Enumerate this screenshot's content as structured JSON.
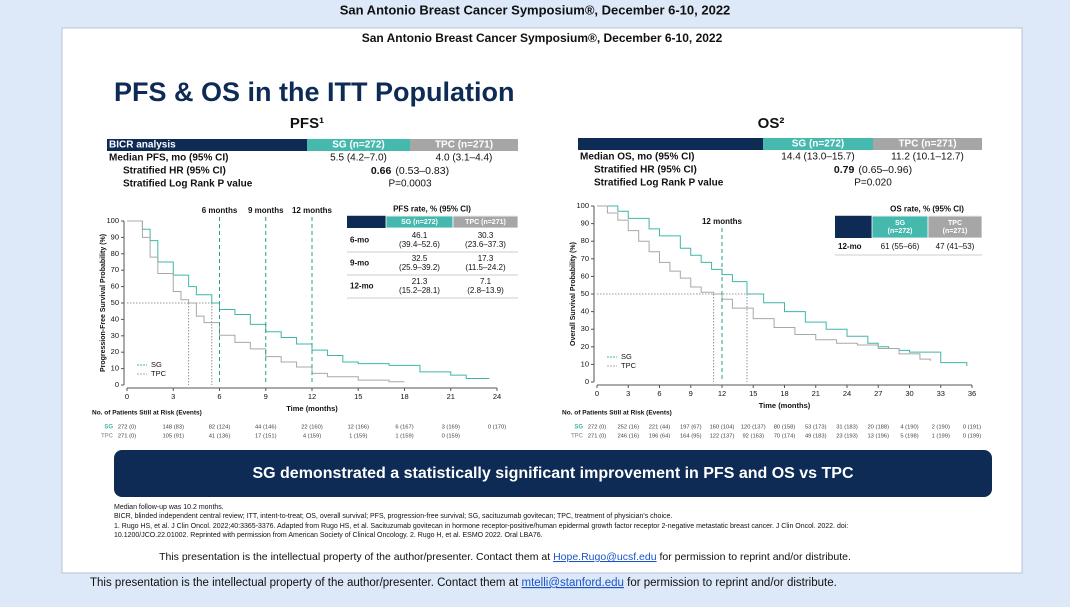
{
  "header": {
    "outer_title": "San Antonio Breast Cancer Symposium®, December 6-10, 2022",
    "slide_title": "San Antonio Breast Cancer Symposium®, December 6-10, 2022"
  },
  "slide_title": "PFS & OS in the ITT Population",
  "summaries": [
    {
      "header": [
        "BICR analysis",
        "SG (n=272)",
        "TPC (n=271)"
      ],
      "median": {
        "label": "Median PFS, mo (95% CI)",
        "values": [
          "5.5 (4.2–7.0)",
          "4.0 (3.1–4.4)"
        ]
      },
      "hr": {
        "label": "Stratified HR (95% CI)",
        "value": "0.66",
        "ci": "(0.53–0.83)"
      },
      "p": {
        "label": "Stratified Log Rank P value",
        "value": "P=0.0003"
      }
    },
    {
      "header": [
        "",
        "SG (n=272)",
        "TPC (n=271)"
      ],
      "median": {
        "label": "Median OS, mo (95% CI)",
        "values": [
          "14.4 (13.0–15.7)",
          "11.2 (10.1–12.7)"
        ]
      },
      "hr": {
        "label": "Stratified HR (95% CI)",
        "value": "0.79",
        "ci": "(0.65–0.96)"
      },
      "p": {
        "label": "Stratified Log Rank P value",
        "value": "P=0.020"
      }
    }
  ],
  "chart_data": [
    {
      "type": "line",
      "title": "PFS¹",
      "y_label": "Progression-Free Survival Probability (%)",
      "x_label": "Time (months)",
      "xlim": [
        0,
        24
      ],
      "xticks": [
        0,
        3,
        6,
        9,
        12,
        15,
        18,
        21,
        24
      ],
      "ylim": [
        0,
        100
      ],
      "yticks": [
        0,
        10,
        20,
        30,
        40,
        50,
        60,
        70,
        80,
        90,
        100
      ],
      "series": [
        {
          "name": "SG",
          "color": "#3fb6a8",
          "x": [
            0,
            1,
            1.5,
            2,
            3,
            4,
            4.5,
            5.5,
            6,
            7,
            8,
            9,
            10,
            11,
            12,
            13,
            14,
            15,
            17,
            19,
            21,
            22,
            23.5
          ],
          "values": [
            100,
            95,
            88,
            75,
            67,
            60,
            55,
            50,
            46,
            43,
            37,
            32.5,
            29,
            25,
            21.3,
            18,
            14,
            13,
            12,
            8,
            6,
            4,
            4
          ]
        },
        {
          "name": "TPC",
          "color": "#a8a8a8",
          "x": [
            0,
            1,
            1.5,
            2,
            3,
            3.5,
            4,
            4.5,
            5,
            6,
            7,
            8,
            9,
            10,
            11,
            12,
            13,
            15,
            17,
            18
          ],
          "values": [
            100,
            90,
            78,
            68,
            57,
            52,
            50,
            42,
            38,
            30.3,
            26,
            22,
            17.3,
            14,
            11,
            7.1,
            5,
            3,
            2,
            2
          ]
        }
      ],
      "annotations": [
        {
          "label": "6 months",
          "x": 6
        },
        {
          "label": "9 months",
          "x": 9
        },
        {
          "label": "12 months",
          "x": 12
        }
      ],
      "median_lines": {
        "y": 50,
        "x": [
          5.5,
          4.0
        ]
      },
      "inset": {
        "title": "PFS rate, % (95% CI)",
        "columns": [
          [
            "SG (n=272)"
          ],
          [
            "TPC (n=271)"
          ]
        ],
        "rows": [
          {
            "label": "6-mo",
            "cells": [
              [
                "46.1",
                "(39.4–52.6)"
              ],
              [
                "30.3",
                "(23.6–37.3)"
              ]
            ]
          },
          {
            "label": "9-mo",
            "cells": [
              [
                "32.5",
                "(25.9–39.2)"
              ],
              [
                "17.3",
                "(11.5–24.2)"
              ]
            ]
          },
          {
            "label": "12-mo",
            "cells": [
              [
                "21.3",
                "(15.2–28.1)"
              ],
              [
                "7.1",
                "(2.8–13.9)"
              ]
            ]
          }
        ]
      },
      "risk_table": {
        "title": "No. of Patients Still at Risk (Events)",
        "rows": [
          {
            "name": "SG",
            "values": [
              "272 (0)",
              "148 (83)",
              "82 (124)",
              "44 (146)",
              "22 (160)",
              "12 (166)",
              "6 (167)",
              "3 (169)",
              "0 (170)"
            ]
          },
          {
            "name": "TPC",
            "values": [
              "271 (0)",
              "105 (91)",
              "41 (136)",
              "17 (151)",
              "4 (159)",
              "1 (159)",
              "1 (159)",
              "0 (159)"
            ]
          }
        ]
      }
    },
    {
      "type": "line",
      "title": "OS²",
      "y_label": "Overall Survival Probability (%)",
      "x_label": "Time (months)",
      "xlim": [
        0,
        36
      ],
      "xticks": [
        0,
        3,
        6,
        9,
        12,
        15,
        18,
        21,
        24,
        27,
        30,
        33,
        36
      ],
      "ylim": [
        0,
        100
      ],
      "yticks": [
        0,
        10,
        20,
        30,
        40,
        50,
        60,
        70,
        80,
        90,
        100
      ],
      "series": [
        {
          "name": "SG",
          "color": "#3fb6a8",
          "x": [
            0,
            2,
            3,
            5,
            6,
            8,
            9,
            10,
            11,
            12,
            13,
            14.4,
            16,
            18,
            20,
            22,
            24,
            26,
            27,
            28,
            29,
            30,
            32,
            33,
            35.5
          ],
          "values": [
            100,
            97,
            93,
            87,
            83,
            76,
            72,
            68,
            64,
            61,
            57,
            50,
            45,
            40,
            34,
            30,
            26,
            22,
            20,
            19,
            18,
            17,
            17,
            11,
            9
          ]
        },
        {
          "name": "TPC",
          "color": "#a8a8a8",
          "x": [
            0,
            1,
            2,
            3,
            4,
            5,
            6,
            7,
            8,
            9,
            10,
            11.2,
            12,
            13,
            15,
            17,
            19,
            21,
            23,
            25,
            27,
            29,
            31,
            32
          ],
          "values": [
            100,
            96,
            92,
            86,
            80,
            74,
            68,
            63,
            59,
            54,
            51,
            50,
            47,
            42,
            36,
            31,
            27,
            24,
            22,
            21,
            19,
            16,
            13,
            12
          ]
        }
      ],
      "annotations": [
        {
          "label": "12 months",
          "x": 12
        }
      ],
      "median_lines": {
        "y": 50,
        "x": [
          14.4,
          11.2
        ]
      },
      "inset": {
        "title": "OS rate, % (95% CI)",
        "columns": [
          [
            "SG",
            "(n=272)"
          ],
          [
            "TPC",
            "(n=271)"
          ]
        ],
        "rows": [
          {
            "label": "12-mo",
            "cells": [
              [
                "61 (55–66)"
              ],
              [
                "47 (41–53)"
              ]
            ]
          }
        ]
      },
      "risk_table": {
        "title": "No. of Patients Still at Risk (Events)",
        "rows": [
          {
            "name": "SG",
            "values": [
              "272 (0)",
              "252 (16)",
              "221 (44)",
              "197 (67)",
              "160 (104)",
              "120 (137)",
              "80 (158)",
              "53 (173)",
              "31 (183)",
              "20 (188)",
              "4 (190)",
              "2 (190)",
              "0 (191)"
            ]
          },
          {
            "name": "TPC",
            "values": [
              "271 (0)",
              "246 (16)",
              "196 (64)",
              "164 (95)",
              "122 (137)",
              "92 (163)",
              "70 (174)",
              "49 (183)",
              "23 (193)",
              "13 (196)",
              "5 (198)",
              "1 (199)",
              "0 (199)"
            ]
          }
        ]
      }
    }
  ],
  "banner": "SG demonstrated a statistically significant improvement in PFS and OS vs TPC",
  "notes": [
    "Median follow-up was 10.2 months.",
    "BICR, blinded independent central review; ITT, intent-to-treat; OS, overall survival; PFS, progression-free survival; SG, sacituzumab govitecan; TPC, treatment of physician's choice.",
    "1. Rugo HS, et al. J Clin Oncol. 2022;40:3365-3376. Adapted from Rugo HS, et al. Sacituzumab govitecan in hormone receptor-positive/human epidermal growth factor receptor 2-negative metastatic breast cancer. J Clin Oncol. 2022. doi:",
    "10.1200/JCO.22.01002. Reprinted with permission from American Society of Clinical Oncology. 2. Rugo H, et al. ESMO 2022. Oral LBA76."
  ],
  "slide_notice": {
    "before": "This presentation is the intellectual property of the author/presenter. Contact them at ",
    "link": "Hope.Rugo@ucsf.edu",
    "after": " for permission to reprint and/or distribute."
  },
  "footer": {
    "before": "This presentation is the intellectual property of the author/presenter. Contact them at ",
    "link": "mtelli@stanford.edu",
    "after": " for permission to reprint and/or distribute."
  }
}
